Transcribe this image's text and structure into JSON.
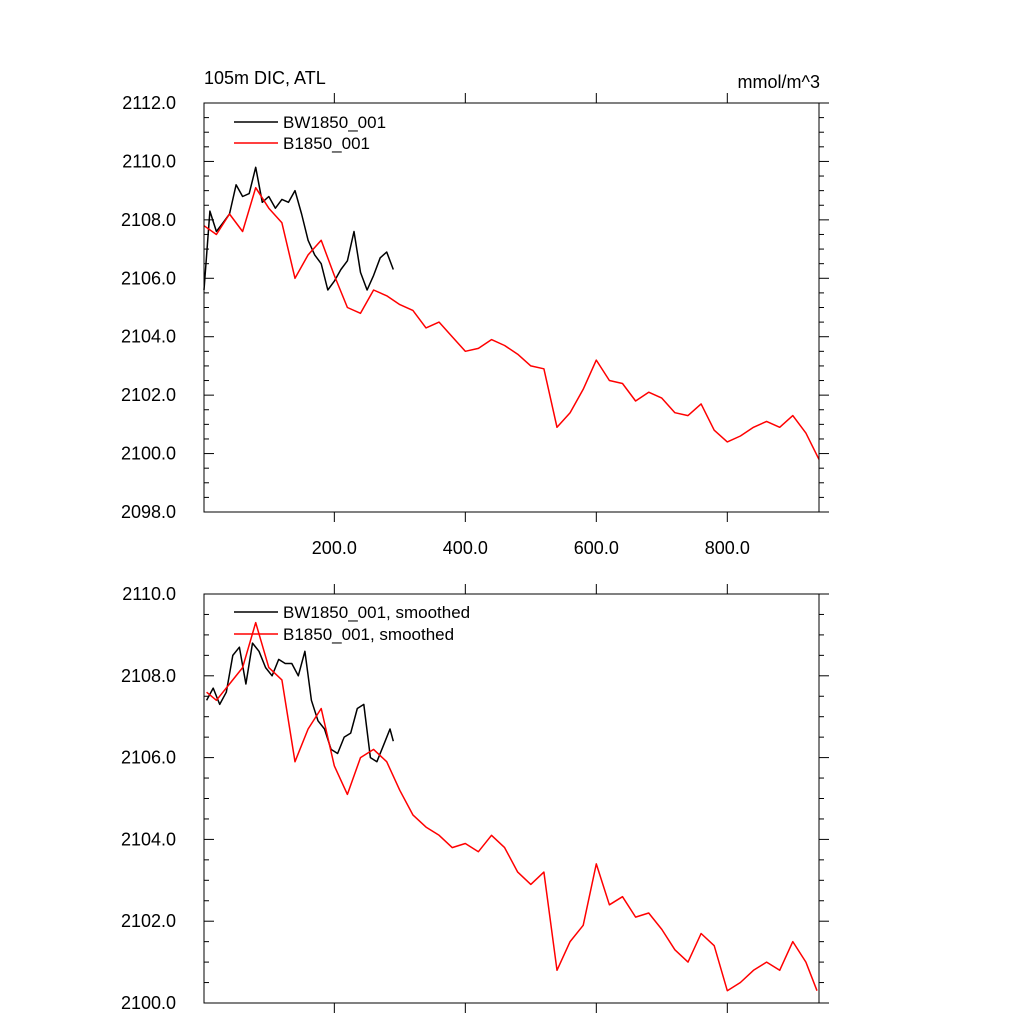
{
  "chart_data": [
    {
      "type": "line",
      "title": "105m DIC, ATL",
      "units": "mmol/m^3",
      "xlabel": "",
      "ylabel": "",
      "xlim": [
        1,
        940
      ],
      "ylim": [
        2098,
        2112
      ],
      "yticks": [
        "2098.0",
        "2100.0",
        "2102.0",
        "2104.0",
        "2106.0",
        "2108.0",
        "2110.0",
        "2112.0"
      ],
      "yticks_values": [
        2098,
        2100,
        2102,
        2104,
        2106,
        2108,
        2110,
        2112
      ],
      "xticks": [
        "200.0",
        "400.0",
        "600.0",
        "800.0"
      ],
      "xticks_values": [
        200,
        400,
        600,
        800
      ],
      "grid": false,
      "legend_position": "top-left",
      "series": [
        {
          "name": "BW1850_001",
          "color": "#000000",
          "x": [
            1,
            10,
            20,
            30,
            40,
            50,
            60,
            70,
            80,
            90,
            100,
            110,
            120,
            130,
            140,
            150,
            160,
            170,
            180,
            190,
            200,
            210,
            220,
            230,
            240,
            250,
            260,
            270,
            280,
            290
          ],
          "values": [
            2105.6,
            2108.3,
            2107.6,
            2107.9,
            2108.2,
            2109.2,
            2108.8,
            2108.9,
            2109.8,
            2108.6,
            2108.8,
            2108.4,
            2108.7,
            2108.6,
            2109.0,
            2108.2,
            2107.3,
            2106.8,
            2106.5,
            2105.6,
            2105.9,
            2106.3,
            2106.6,
            2107.6,
            2106.2,
            2105.6,
            2106.1,
            2106.7,
            2106.9,
            2106.3
          ]
        },
        {
          "name": "B1850_001",
          "color": "#ff0000",
          "x": [
            1,
            20,
            40,
            60,
            80,
            100,
            120,
            140,
            160,
            180,
            200,
            220,
            240,
            260,
            280,
            300,
            320,
            340,
            360,
            380,
            400,
            420,
            440,
            460,
            480,
            500,
            520,
            540,
            560,
            580,
            600,
            620,
            640,
            660,
            680,
            700,
            720,
            740,
            760,
            780,
            800,
            820,
            840,
            860,
            880,
            900,
            920,
            940
          ],
          "values": [
            2107.8,
            2107.5,
            2108.2,
            2107.6,
            2109.1,
            2108.4,
            2107.9,
            2106.0,
            2106.8,
            2107.3,
            2106.1,
            2105.0,
            2104.8,
            2105.6,
            2105.4,
            2105.1,
            2104.9,
            2104.3,
            2104.5,
            2104.0,
            2103.5,
            2103.6,
            2103.9,
            2103.7,
            2103.4,
            2103.0,
            2102.9,
            2100.9,
            2101.4,
            2102.2,
            2103.2,
            2102.5,
            2102.4,
            2101.8,
            2102.1,
            2101.9,
            2101.4,
            2101.3,
            2101.7,
            2100.8,
            2100.4,
            2100.6,
            2100.9,
            2101.1,
            2100.9,
            2101.3,
            2100.7,
            2099.8
          ]
        }
      ]
    },
    {
      "type": "line",
      "title": "",
      "xlabel": "",
      "ylabel": "",
      "xlim": [
        1,
        940
      ],
      "ylim": [
        2100,
        2110
      ],
      "yticks": [
        "2100.0",
        "2102.0",
        "2104.0",
        "2106.0",
        "2108.0",
        "2110.0"
      ],
      "yticks_values": [
        2100,
        2102,
        2104,
        2106,
        2108,
        2110
      ],
      "xticks": [],
      "xticks_values": [
        200,
        400,
        600,
        800
      ],
      "grid": false,
      "legend_position": "top-left",
      "series": [
        {
          "name": "BW1850_001, smoothed",
          "color": "#000000",
          "x": [
            5,
            15,
            25,
            35,
            45,
            55,
            65,
            75,
            85,
            95,
            105,
            115,
            125,
            135,
            145,
            155,
            165,
            175,
            185,
            195,
            205,
            215,
            225,
            235,
            245,
            255,
            265,
            275,
            285,
            290
          ],
          "values": [
            2107.4,
            2107.7,
            2107.3,
            2107.6,
            2108.5,
            2108.7,
            2107.8,
            2108.8,
            2108.6,
            2108.2,
            2108.0,
            2108.4,
            2108.3,
            2108.3,
            2108.0,
            2108.6,
            2107.4,
            2106.9,
            2106.7,
            2106.2,
            2106.1,
            2106.5,
            2106.6,
            2107.2,
            2107.3,
            2106.0,
            2105.9,
            2106.3,
            2106.7,
            2106.4
          ]
        },
        {
          "name": "B1850_001, smoothed",
          "color": "#ff0000",
          "x": [
            5,
            20,
            40,
            60,
            80,
            100,
            120,
            140,
            160,
            180,
            200,
            220,
            240,
            260,
            280,
            300,
            320,
            340,
            360,
            380,
            400,
            420,
            440,
            460,
            480,
            500,
            520,
            540,
            560,
            580,
            600,
            620,
            640,
            660,
            680,
            700,
            720,
            740,
            760,
            780,
            800,
            820,
            840,
            860,
            880,
            900,
            920,
            937
          ],
          "values": [
            2107.6,
            2107.4,
            2107.8,
            2108.2,
            2109.3,
            2108.2,
            2107.9,
            2105.9,
            2106.7,
            2107.2,
            2105.8,
            2105.1,
            2106.0,
            2106.2,
            2105.9,
            2105.2,
            2104.6,
            2104.3,
            2104.1,
            2103.8,
            2103.9,
            2103.7,
            2104.1,
            2103.8,
            2103.2,
            2102.9,
            2103.2,
            2100.8,
            2101.5,
            2101.9,
            2103.4,
            2102.4,
            2102.6,
            2102.1,
            2102.2,
            2101.8,
            2101.3,
            2101.0,
            2101.7,
            2101.4,
            2100.3,
            2100.5,
            2100.8,
            2101.0,
            2100.8,
            2101.5,
            2101.0,
            2100.3
          ]
        }
      ]
    }
  ]
}
